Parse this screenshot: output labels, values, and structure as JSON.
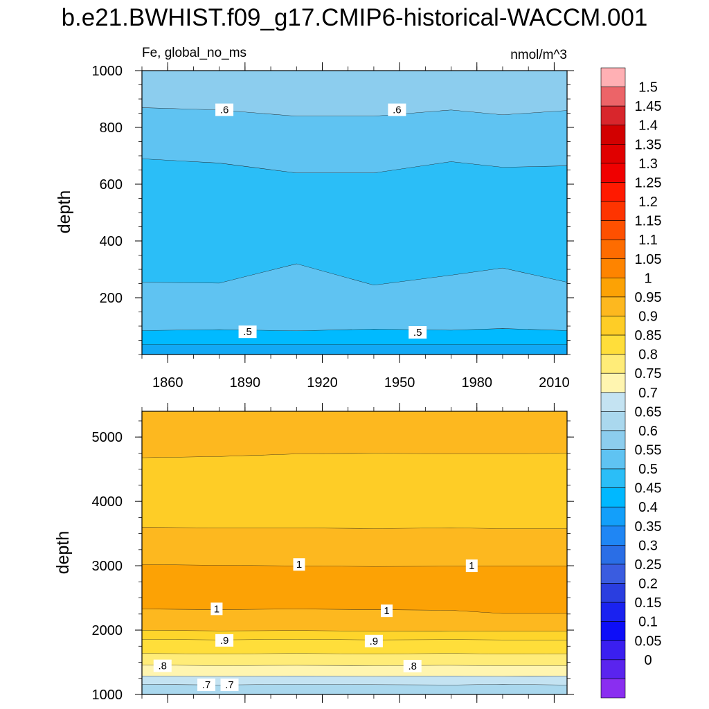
{
  "title": "b.e21.BWHIST.f09_g17.CMIP6-historical-WACCM.001",
  "colors": {
    "contour_line": "#1a1a1a",
    "label_box": "#ffffff"
  },
  "chart_data": [
    {
      "type": "heatmap",
      "panel": "upper",
      "left_title": "Fe, global_no_ms",
      "right_title": "nmol/m^3",
      "xlabel": "",
      "ylabel": "depth",
      "xlim": [
        1850,
        2015
      ],
      "ylim": [
        1000,
        0
      ],
      "x_ticks": [
        1860,
        1890,
        1920,
        1950,
        1980,
        2010
      ],
      "y_ticks": [
        200,
        400,
        600,
        800,
        1000
      ],
      "bands": [
        {
          "value_range": [
            0.45,
            0.5
          ],
          "color": "#12a9f5",
          "depth_top": 0,
          "depth_bottom": [
            35,
            35,
            35,
            35,
            35,
            35,
            35
          ]
        },
        {
          "value_range": [
            0.5,
            0.55
          ],
          "color": "#00baff",
          "depth_top": 35,
          "depth_bottom": [
            85,
            88,
            84,
            90,
            86,
            92,
            85
          ]
        },
        {
          "value_range": [
            0.55,
            0.6
          ],
          "color": "#5fc3f2",
          "depth_top": null,
          "depth_bottom": [
            255,
            252,
            320,
            245,
            280,
            305,
            255
          ]
        },
        {
          "value_range": [
            0.5,
            0.55
          ],
          "color": "#2bbef7",
          "depth_top": null,
          "depth_bottom": [
            690,
            675,
            640,
            640,
            680,
            660,
            665
          ]
        },
        {
          "value_range": [
            0.55,
            0.6
          ],
          "color": "#5fc3f2",
          "depth_top": null,
          "depth_bottom": [
            870,
            862,
            840,
            840,
            862,
            845,
            860
          ]
        },
        {
          "value_range": [
            0.6,
            0.65
          ],
          "color": "#8ccdee",
          "depth_top": null,
          "depth_bottom": [
            1000,
            1000,
            1000,
            1000,
            1000,
            1000,
            1000
          ]
        }
      ],
      "band_profile_years": [
        1850,
        1880,
        1910,
        1940,
        1970,
        1990,
        2015
      ],
      "contour_labels": [
        {
          "text": ".5",
          "year": 1891,
          "depth": 80
        },
        {
          "text": ".5",
          "year": 1957,
          "depth": 78
        },
        {
          "text": ".6",
          "year": 1882,
          "depth": 862
        },
        {
          "text": ".6",
          "year": 1949,
          "depth": 862
        }
      ]
    },
    {
      "type": "heatmap",
      "panel": "lower",
      "left_title": "",
      "right_title": "",
      "xlabel": "",
      "ylabel": "depth",
      "xlim": [
        1850,
        2015
      ],
      "ylim": [
        5400,
        1000
      ],
      "x_ticks": [
        1860,
        1890,
        1920,
        1950,
        1980,
        2010
      ],
      "y_ticks": [
        1000,
        2000,
        3000,
        4000,
        5000
      ],
      "bands": [
        {
          "value_range": [
            0.65,
            0.7
          ],
          "color": "#aad8ee",
          "depth_top": 1000,
          "depth_bottom": [
            1160,
            1150,
            1160,
            1155,
            1150,
            1160,
            1150
          ]
        },
        {
          "value_range": [
            0.7,
            0.75
          ],
          "color": "#c4e3f2",
          "depth_top": null,
          "depth_bottom": [
            1290,
            1285,
            1290,
            1285,
            1290,
            1285,
            1290
          ]
        },
        {
          "value_range": [
            0.75,
            0.8
          ],
          "color": "#fff5b0",
          "depth_top": null,
          "depth_bottom": [
            1460,
            1450,
            1455,
            1450,
            1455,
            1450,
            1450
          ]
        },
        {
          "value_range": [
            0.8,
            0.85
          ],
          "color": "#ffec78",
          "depth_top": null,
          "depth_bottom": [
            1640,
            1630,
            1640,
            1630,
            1640,
            1630,
            1635
          ]
        },
        {
          "value_range": [
            0.85,
            0.9
          ],
          "color": "#ffde3a",
          "depth_top": null,
          "depth_bottom": [
            1860,
            1850,
            1860,
            1850,
            1855,
            1850,
            1850
          ]
        },
        {
          "value_range": [
            0.9,
            0.95
          ],
          "color": "#fed52b",
          "depth_top": null,
          "depth_bottom": [
            2000,
            1990,
            1995,
            1985,
            1990,
            1985,
            1985
          ]
        },
        {
          "value_range": [
            0.95,
            1.0
          ],
          "color": "#fdb81f",
          "depth_top": null,
          "depth_bottom": [
            2330,
            2320,
            2330,
            2320,
            2310,
            2260,
            2260
          ]
        },
        {
          "value_range": [
            1.0,
            1.05
          ],
          "color": "#fca205",
          "depth_top": null,
          "depth_bottom": [
            3020,
            3010,
            3000,
            2990,
            2995,
            3000,
            3000
          ]
        },
        {
          "value_range": [
            0.95,
            1.0
          ],
          "color": "#fdb81f",
          "depth_top": null,
          "depth_bottom": [
            3600,
            3590,
            3590,
            3580,
            3590,
            3580,
            3580
          ]
        },
        {
          "value_range": [
            0.9,
            0.95
          ],
          "color": "#fecd26",
          "depth_top": null,
          "depth_bottom": [
            4680,
            4700,
            4740,
            4750,
            4740,
            4740,
            4750
          ]
        },
        {
          "value_range": [
            0.95,
            1.0
          ],
          "color": "#fdb81f",
          "depth_top": null,
          "depth_bottom": [
            5400,
            5400,
            5400,
            5400,
            5400,
            5400,
            5400
          ]
        }
      ],
      "band_profile_years": [
        1850,
        1880,
        1910,
        1940,
        1970,
        1990,
        2015
      ],
      "contour_labels": [
        {
          "text": ".7",
          "year": 1875,
          "depth": 1150
        },
        {
          "text": ".7",
          "year": 1884,
          "depth": 1150
        },
        {
          "text": ".8",
          "year": 1858,
          "depth": 1445
        },
        {
          "text": ".8",
          "year": 1955,
          "depth": 1440
        },
        {
          "text": ".9",
          "year": 1882,
          "depth": 1840
        },
        {
          "text": ".9",
          "year": 1940,
          "depth": 1830
        },
        {
          "text": "1",
          "year": 1879,
          "depth": 2330
        },
        {
          "text": "1",
          "year": 1945,
          "depth": 2300
        },
        {
          "text": "1",
          "year": 1911,
          "depth": 3020
        },
        {
          "text": "1",
          "year": 1978,
          "depth": 3000
        }
      ]
    },
    {
      "type": "colorbar",
      "labels": [
        "1.5",
        "1.45",
        "1.4",
        "1.35",
        "1.3",
        "1.25",
        "1.2",
        "1.15",
        "1.1",
        "1.05",
        "1",
        "0.95",
        "0.9",
        "0.85",
        "0.8",
        "0.75",
        "0.7",
        "0.65",
        "0.6",
        "0.55",
        "0.5",
        "0.45",
        "0.4",
        "0.35",
        "0.3",
        "0.25",
        "0.2",
        "0.15",
        "0.1",
        "0.05",
        "0"
      ],
      "colors_top_to_bottom": [
        "#ffb0b4",
        "#ec6468",
        "#d8262c",
        "#d20000",
        "#e00000",
        "#f00000",
        "#ff1a00",
        "#fe3400",
        "#fe5000",
        "#fe6c00",
        "#fe8400",
        "#fca205",
        "#fdb81f",
        "#fecd26",
        "#ffde3a",
        "#ffec78",
        "#fff5b0",
        "#c4e3f2",
        "#aad8ee",
        "#8ccdee",
        "#5fc3f2",
        "#2bbef7",
        "#00b8ff",
        "#139ffa",
        "#1f86f4",
        "#2a6ee6",
        "#3a5ce0",
        "#2a3ee0",
        "#1a22f0",
        "#0d0ef8",
        "#3a1ff0",
        "#5a24ee",
        "#8a2ef0"
      ]
    }
  ]
}
